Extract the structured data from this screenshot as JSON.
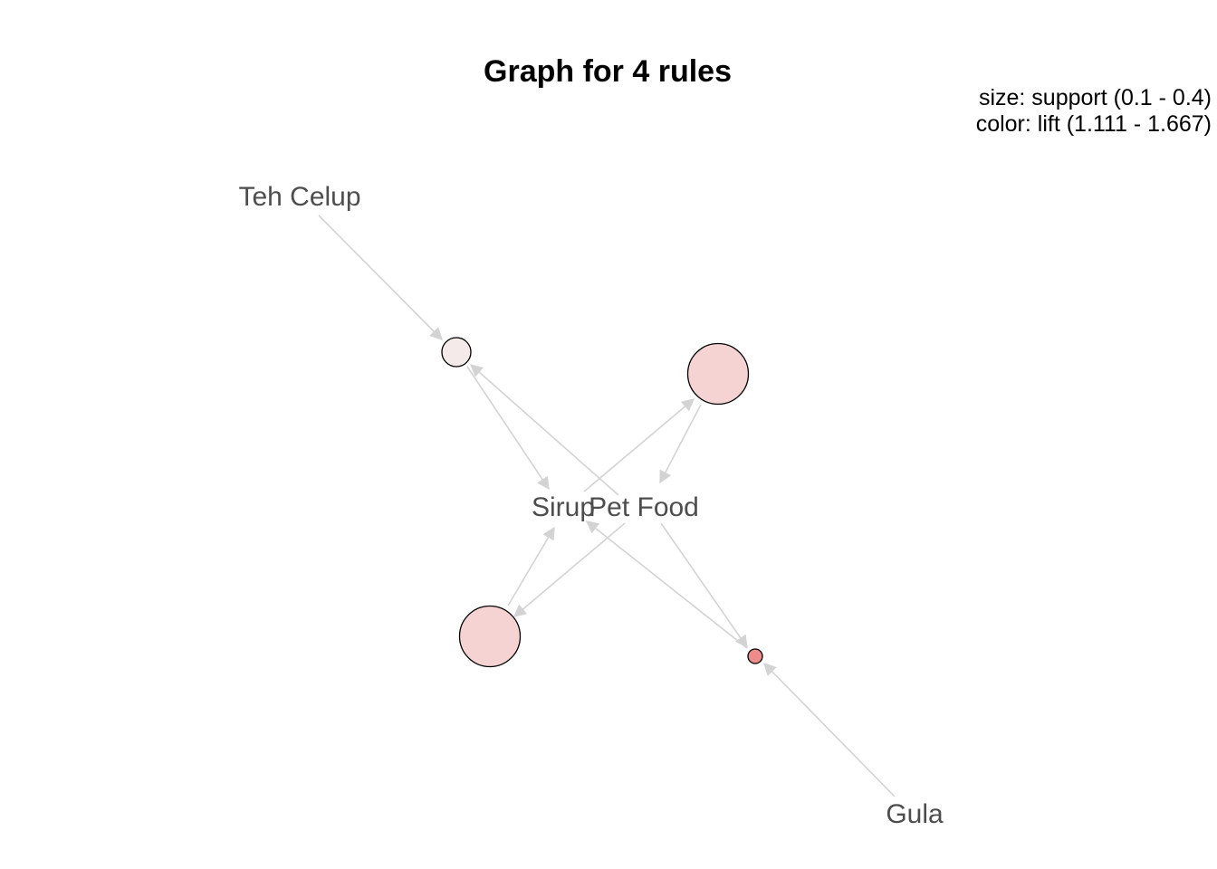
{
  "title": "Graph for 4 rules",
  "legend": {
    "size_text": "size: support (0.1 - 0.4)",
    "color_text": "color: lift (1.111 - 1.667)"
  },
  "colors": {
    "edge": "#d3d3d3",
    "item_label": "#4d4d4d",
    "lift_low": "#f5eaea",
    "lift_high": "#ee8c8c"
  },
  "items": [
    {
      "id": "teh-celup",
      "label": "Teh Celup"
    },
    {
      "id": "sirup",
      "label": "Sirup"
    },
    {
      "id": "pet-food",
      "label": "Pet Food"
    },
    {
      "id": "gula",
      "label": "Gula"
    }
  ],
  "rules": [
    {
      "id": "rule-1",
      "lhs": "Teh Celup",
      "rhs": "Sirup",
      "support": 0.1,
      "lift": 1.111
    },
    {
      "id": "rule-2",
      "lhs": "Sirup",
      "rhs": "Pet Food",
      "support": 0.4,
      "lift": 1.333
    },
    {
      "id": "rule-3",
      "lhs": "Pet Food",
      "rhs": "Sirup",
      "support": 0.4,
      "lift": 1.333
    },
    {
      "id": "rule-4",
      "lhs": "Gula",
      "rhs": "Pet Food",
      "support": 0.1,
      "lift": 1.667
    }
  ]
}
